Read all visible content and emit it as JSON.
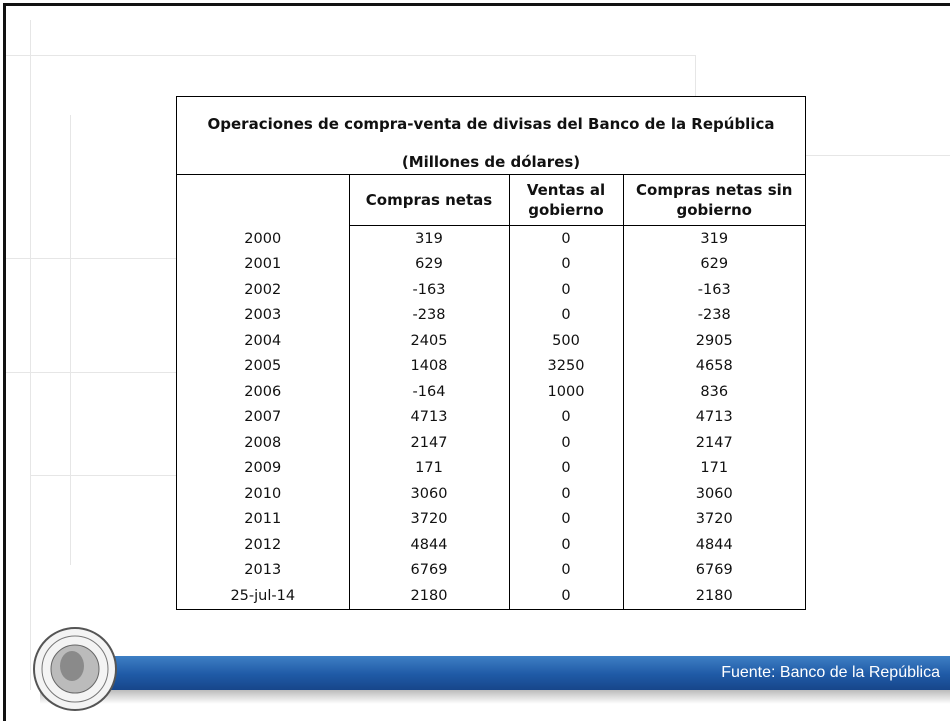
{
  "table": {
    "title": "Operaciones de compra-venta de divisas del Banco de la República",
    "subtitle": "(Millones de dólares)",
    "headers": [
      "Compras netas",
      "Ventas al gobierno",
      "Compras netas sin gobierno"
    ],
    "rows": [
      [
        2000,
        319,
        0,
        319
      ],
      [
        2001,
        629,
        0,
        629
      ],
      [
        2002,
        -163,
        0,
        -163
      ],
      [
        2003,
        -238,
        0,
        -238
      ],
      [
        2004,
        2405,
        500,
        2905
      ],
      [
        2005,
        1408,
        3250,
        4658
      ],
      [
        2006,
        -164,
        1000,
        836
      ],
      [
        2007,
        4713,
        0,
        4713
      ],
      [
        2008,
        2147,
        0,
        2147
      ],
      [
        2009,
        171,
        0,
        171
      ],
      [
        2010,
        3060,
        0,
        3060
      ],
      [
        2011,
        3720,
        0,
        3720
      ],
      [
        2012,
        4844,
        0,
        4844
      ],
      [
        2013,
        6769,
        0,
        6769
      ],
      [
        "25-jul-14",
        2180,
        0,
        2180
      ]
    ]
  },
  "footer": {
    "source": "Fuente: Banco de la República"
  }
}
